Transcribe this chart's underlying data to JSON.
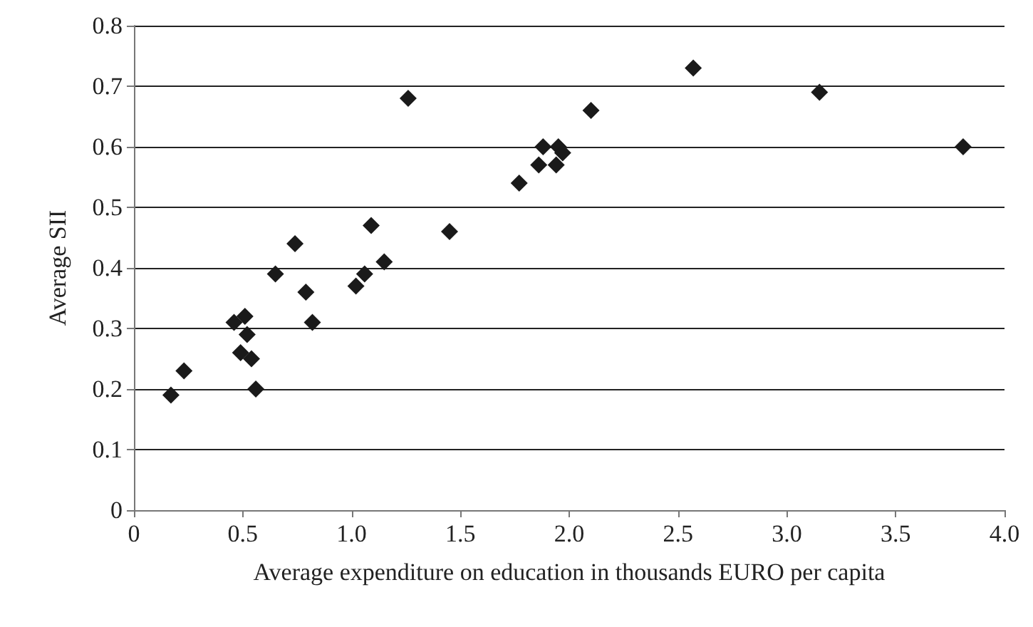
{
  "chart_data": {
    "type": "scatter",
    "xlabel": "Average expenditure on education in thousands EURO per capita",
    "ylabel": "Average SII",
    "x": [
      0.17,
      0.23,
      0.46,
      0.51,
      0.52,
      0.49,
      0.54,
      0.56,
      0.65,
      0.74,
      0.79,
      0.82,
      1.02,
      1.06,
      1.09,
      1.15,
      1.45,
      1.26,
      1.77,
      1.86,
      1.88,
      1.94,
      1.95,
      1.97,
      2.1,
      2.57,
      3.15,
      3.81
    ],
    "series": [
      {
        "color": "#1a1a1a",
        "values": [
          0.19,
          0.23,
          0.31,
          0.32,
          0.29,
          0.26,
          0.25,
          0.2,
          0.39,
          0.44,
          0.36,
          0.31,
          0.37,
          0.39,
          0.47,
          0.41,
          0.46,
          0.68,
          0.54,
          0.57,
          0.6,
          0.57,
          0.6,
          0.59,
          0.66,
          0.73,
          0.69,
          0.6
        ]
      }
    ],
    "xlim": [
      0,
      4
    ],
    "xticks": [
      0,
      {
        "value": 0.5,
        "label": "0.5"
      },
      {
        "value": 1,
        "label": "1.0"
      },
      {
        "value": 1.5,
        "label": "1.5"
      },
      {
        "value": 2,
        "label": "2.0"
      },
      {
        "value": 2.5,
        "label": "2.5"
      },
      {
        "value": 3,
        "label": "3.0"
      },
      {
        "value": 3.5,
        "label": "3.5"
      },
      {
        "value": 4,
        "label": "4.0"
      }
    ],
    "ylim": [
      0,
      0.8
    ],
    "yticks": [
      0,
      0.1,
      0.2,
      0.3,
      0.4,
      0.5,
      0.6,
      0.7,
      0.8
    ],
    "grid": "y",
    "marker": "diamond"
  }
}
